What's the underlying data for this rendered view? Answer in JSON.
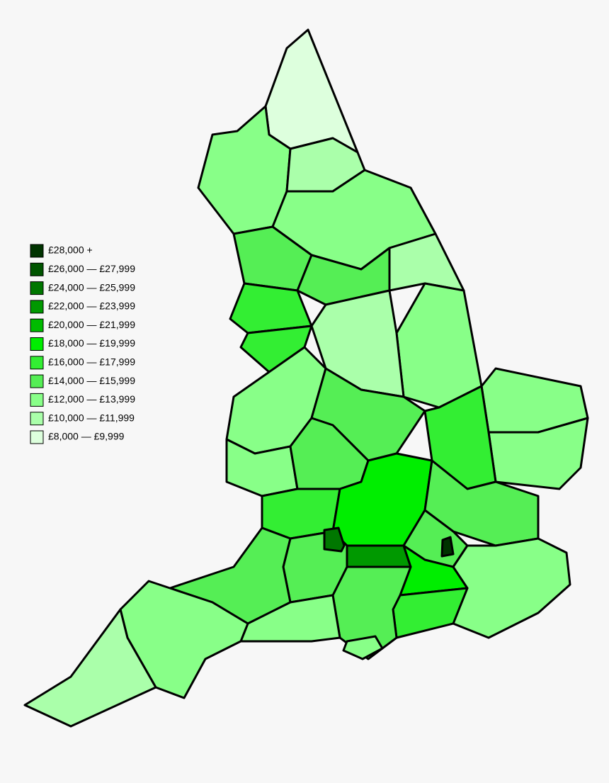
{
  "legend": {
    "items": [
      {
        "label": "£28,000 +",
        "color": "#003300"
      },
      {
        "label": "£26,000 — £27,999",
        "color": "#005500"
      },
      {
        "label": "£24,000 — £25,999",
        "color": "#007700"
      },
      {
        "label": "£22,000 — £23,999",
        "color": "#009900"
      },
      {
        "label": "£20,000 — £21,999",
        "color": "#00bb00"
      },
      {
        "label": "£18,000 — £19,999",
        "color": "#00ee00"
      },
      {
        "label": "£16,000 — £17,999",
        "color": "#33ee33"
      },
      {
        "label": "£14,000 — £15,999",
        "color": "#55ee55"
      },
      {
        "label": "£12,000 — £13,999",
        "color": "#88ff88"
      },
      {
        "label": "£10,000 — £11,999",
        "color": "#aaffaa"
      },
      {
        "label": "£8,000 — £9,999",
        "color": "#ddffdd"
      }
    ]
  }
}
